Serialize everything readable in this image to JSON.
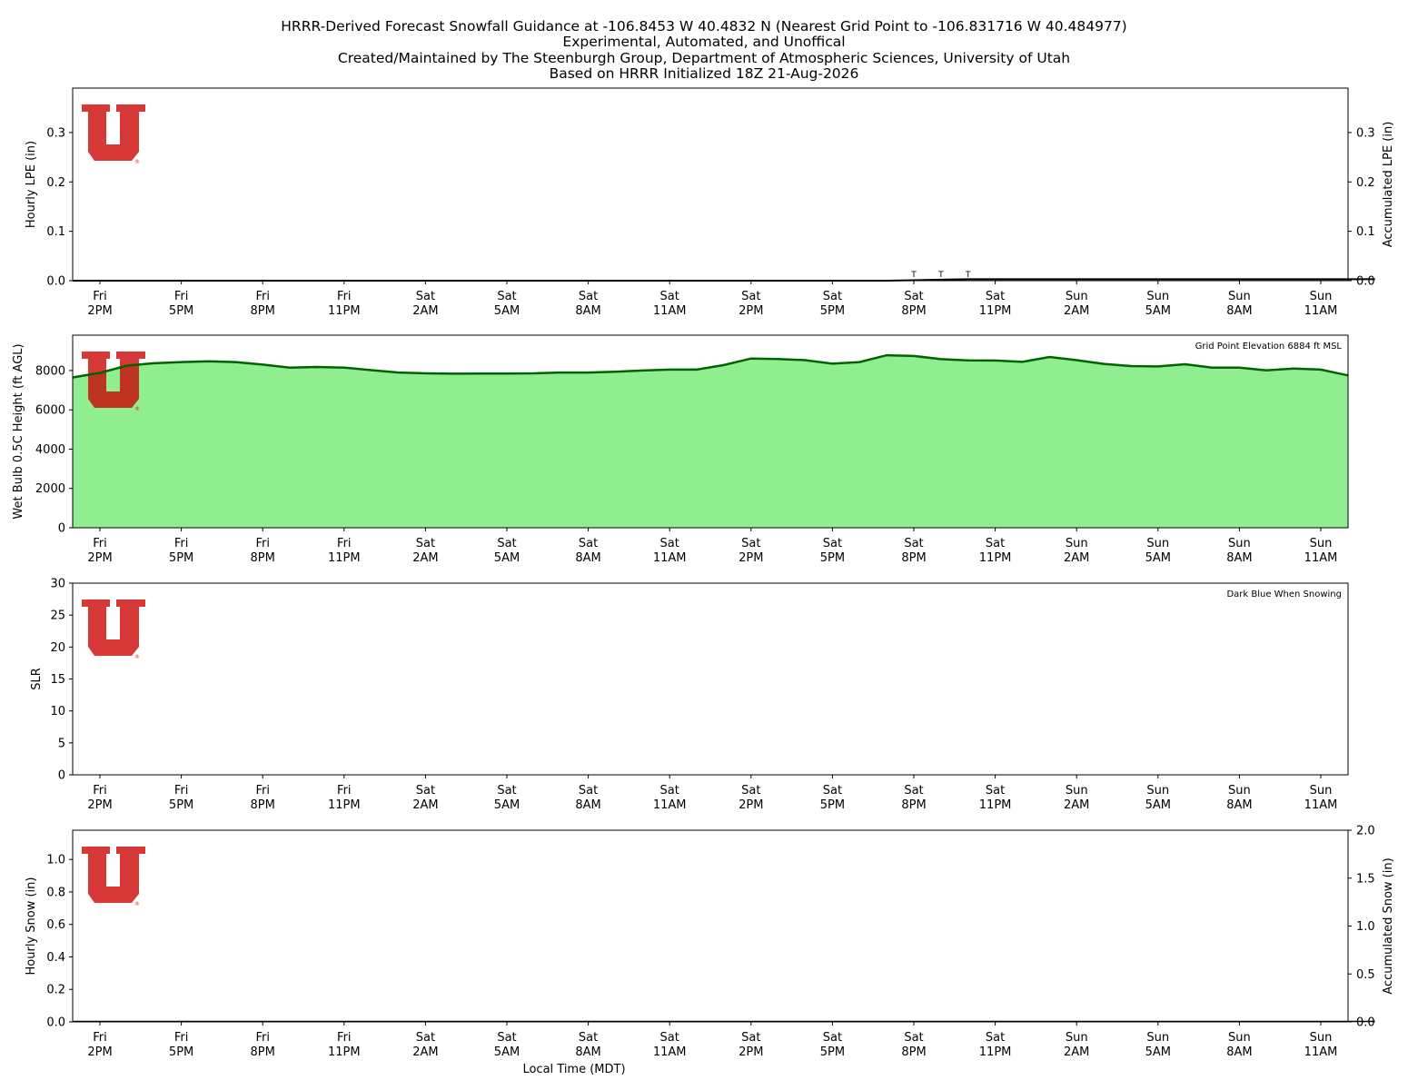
{
  "title_lines": [
    "HRRR-Derived Forecast Snowfall Guidance at -106.8453 W 40.4832 N (Nearest Grid Point to -106.831716 W 40.484977)",
    "Experimental, Automated, and Unoffical",
    "Created/Maintained by The Steenburgh Group, Department of Atmospheric Sciences, University of Utah",
    "Based on HRRR Initialized 18Z 21-Aug-2026"
  ],
  "x_axis": {
    "tick_labels": [
      [
        "Fri",
        "2PM"
      ],
      [
        "Fri",
        "5PM"
      ],
      [
        "Fri",
        "8PM"
      ],
      [
        "Fri",
        "11PM"
      ],
      [
        "Sat",
        "2AM"
      ],
      [
        "Sat",
        "5AM"
      ],
      [
        "Sat",
        "8AM"
      ],
      [
        "Sat",
        "11AM"
      ],
      [
        "Sat",
        "2PM"
      ],
      [
        "Sat",
        "5PM"
      ],
      [
        "Sat",
        "8PM"
      ],
      [
        "Sat",
        "11PM"
      ],
      [
        "Sun",
        "2AM"
      ],
      [
        "Sun",
        "5AM"
      ],
      [
        "Sun",
        "8AM"
      ],
      [
        "Sun",
        "11AM"
      ]
    ],
    "xlabel": "Local Time (MDT)"
  },
  "logo": {
    "color": "#cc0000",
    "alt": "University of Utah block U logo"
  },
  "chart_data": [
    {
      "type": "bar",
      "panel": "lpe",
      "ylabel": "Hourly LPE (in)",
      "ylabel_right": "Accumulated LPE (in)",
      "ylim": [
        0,
        0.39
      ],
      "yticks": [
        0.0,
        0.1,
        0.2,
        0.3
      ],
      "yticks_right": [
        0.0,
        0.1,
        0.2,
        0.3
      ],
      "x_hours": [
        -1,
        48
      ],
      "hourly_values": [
        0,
        0,
        0,
        0,
        0,
        0,
        0,
        0,
        0,
        0,
        0,
        0,
        0,
        0,
        0,
        0,
        0,
        0,
        0,
        0,
        0,
        0,
        0,
        0,
        0,
        0,
        0,
        0,
        0,
        0,
        0,
        0.001,
        0.001,
        0.001,
        0,
        0,
        0,
        0,
        0,
        0,
        0,
        0,
        0,
        0,
        0,
        0,
        0,
        0,
        0
      ],
      "accumulated_values": [
        0,
        0,
        0,
        0,
        0,
        0,
        0,
        0,
        0,
        0,
        0,
        0,
        0,
        0,
        0,
        0,
        0,
        0,
        0,
        0,
        0,
        0,
        0,
        0,
        0,
        0,
        0,
        0,
        0,
        0,
        0,
        0.001,
        0.002,
        0.003,
        0.003,
        0.003,
        0.003,
        0.003,
        0.003,
        0.003,
        0.003,
        0.003,
        0.003,
        0.003,
        0.003,
        0.003,
        0.003,
        0.003,
        0.003
      ],
      "trace_marker": "T",
      "trace_hours": [
        30,
        31,
        32
      ]
    },
    {
      "type": "area",
      "panel": "wetbulb",
      "ylabel": "Wet Bulb 0.5C Height (ft AGL)",
      "annotation": "Grid Point Elevation 6884 ft MSL",
      "ylim": [
        0,
        9800
      ],
      "yticks": [
        0,
        2000,
        4000,
        6000,
        8000
      ],
      "fill_color": "#90ee90",
      "line_color": "#006400",
      "x_hours": [
        -1,
        0,
        1,
        2,
        3,
        4,
        5,
        6,
        7,
        8,
        9,
        10,
        11,
        12,
        13,
        14,
        15,
        16,
        17,
        18,
        19,
        20,
        21,
        22,
        23,
        24,
        25,
        26,
        27,
        28,
        29,
        30,
        31,
        32,
        33,
        34,
        35,
        36,
        37,
        38,
        39,
        40,
        41,
        42,
        43,
        44,
        45,
        46,
        47
      ],
      "values": [
        7650,
        7880,
        8250,
        8370,
        8430,
        8470,
        8430,
        8300,
        8150,
        8180,
        8150,
        8020,
        7900,
        7860,
        7840,
        7850,
        7850,
        7860,
        7900,
        7900,
        7940,
        8000,
        8050,
        8050,
        8280,
        8610,
        8590,
        8530,
        8350,
        8430,
        8780,
        8740,
        8580,
        8520,
        8510,
        8440,
        8690,
        8530,
        8340,
        8230,
        8210,
        8320,
        8150,
        8150,
        8010,
        8100,
        8050,
        7750,
        7750
      ]
    },
    {
      "type": "line",
      "panel": "slr",
      "ylabel": "SLR",
      "annotation": "Dark Blue When Snowing",
      "ylim": [
        0,
        30
      ],
      "yticks": [
        0,
        5,
        10,
        15,
        20,
        25,
        30
      ],
      "values": []
    },
    {
      "type": "bar",
      "panel": "snow",
      "ylabel": "Hourly Snow (in)",
      "ylabel_right": "Accumulated Snow (in)",
      "ylim": [
        0,
        1.18
      ],
      "ylim_right": [
        0,
        2.0
      ],
      "yticks": [
        0.0,
        0.2,
        0.4,
        0.6,
        0.8,
        1.0
      ],
      "yticks_right": [
        0.0,
        0.5,
        1.0,
        1.5,
        2.0
      ],
      "hourly_values": [],
      "accumulated_values": [
        0,
        0,
        0,
        0,
        0,
        0,
        0,
        0,
        0,
        0,
        0,
        0,
        0,
        0,
        0,
        0,
        0,
        0,
        0,
        0,
        0,
        0,
        0,
        0,
        0,
        0,
        0,
        0,
        0,
        0,
        0,
        0,
        0,
        0,
        0,
        0,
        0,
        0,
        0,
        0,
        0,
        0,
        0,
        0,
        0,
        0,
        0,
        0,
        0
      ]
    }
  ]
}
